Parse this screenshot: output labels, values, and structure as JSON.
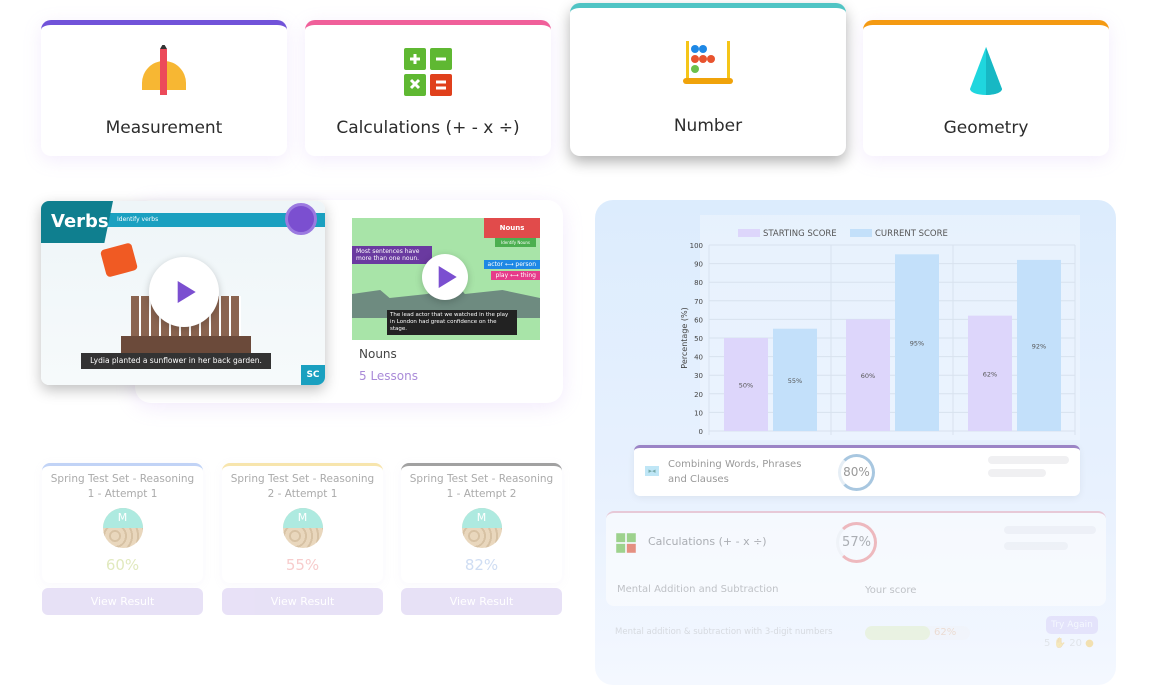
{
  "topics": [
    {
      "label": "Measurement",
      "icon": "protractor-pencil-icon",
      "accent": "#7153d9"
    },
    {
      "label": "Calculations (+ - x ÷)",
      "icon": "calculator-signs-icon",
      "accent": "#f0609a"
    },
    {
      "label": "Number",
      "icon": "abacus-icon",
      "accent": "#4fc4c4"
    },
    {
      "label": "Geometry",
      "icon": "cone-icon",
      "accent": "#f49a12"
    }
  ],
  "videos": {
    "verbs": {
      "badge": "Verbs",
      "subtitle": "Identify verbs",
      "caption": "Lydia planted a sunflower in her back garden.",
      "corner": "SC"
    },
    "nouns": {
      "title": "Nouns",
      "lessons": "5 Lessons",
      "banner": "Nouns",
      "sub": "Identify Nouns",
      "note": "Most sentences have more than one noun.",
      "pair1": "actor ⟷ person",
      "pair2": "play ⟷ thing",
      "caption": "The lead actor that we watched in the play in London had great confidence on the stage."
    }
  },
  "chart_data": {
    "type": "bar",
    "categories": [
      "",
      "",
      ""
    ],
    "series": [
      {
        "name": "STARTING SCORE",
        "values": [
          50,
          60,
          62
        ],
        "labels": [
          "50%",
          "60%",
          "62%"
        ],
        "color": "#ddd6fb"
      },
      {
        "name": "CURRENT SCORE",
        "values": [
          55,
          95,
          92
        ],
        "labels": [
          "55%",
          "95%",
          "92%"
        ],
        "color": "#c3e0fa"
      }
    ],
    "ylabel": "Percentage (%)",
    "ylim": [
      0,
      100
    ],
    "yticks": [
      0,
      10,
      20,
      30,
      40,
      50,
      60,
      70,
      80,
      90,
      100
    ],
    "grid": true,
    "legend": "top"
  },
  "progress": {
    "combining": {
      "label": "Combining Words, Phrases and Clauses",
      "score": "80%",
      "value": 80
    },
    "calculations": {
      "label": "Calculations (+ - x ÷)",
      "score": "57%",
      "value": 57,
      "col1": "Mental Addition and Subtraction",
      "col2": "Your score",
      "row": {
        "label": "Mental addition & subtraction with 3-digit numbers",
        "score": "62%",
        "value": 62,
        "button": "Try Again",
        "count1": "5",
        "count2": "20"
      }
    }
  },
  "tests": [
    {
      "title": "Spring Test Set - Reasoning 1 - Attempt 1",
      "avatar": "M",
      "score": "60%",
      "accent": "#8fb0f0",
      "scoreColor": "#c9d88a",
      "button": "View Result"
    },
    {
      "title": "Spring Test Set - Reasoning 2 - Attempt 1",
      "avatar": "M",
      "score": "55%",
      "accent": "#f2d06b",
      "scoreColor": "#f2a3a3",
      "button": "View Result"
    },
    {
      "title": "Spring Test Set - Reasoning 1 - Attempt 2",
      "avatar": "M",
      "score": "82%",
      "accent": "#555555",
      "scoreColor": "#a9c3ea",
      "button": "View Result"
    }
  ]
}
